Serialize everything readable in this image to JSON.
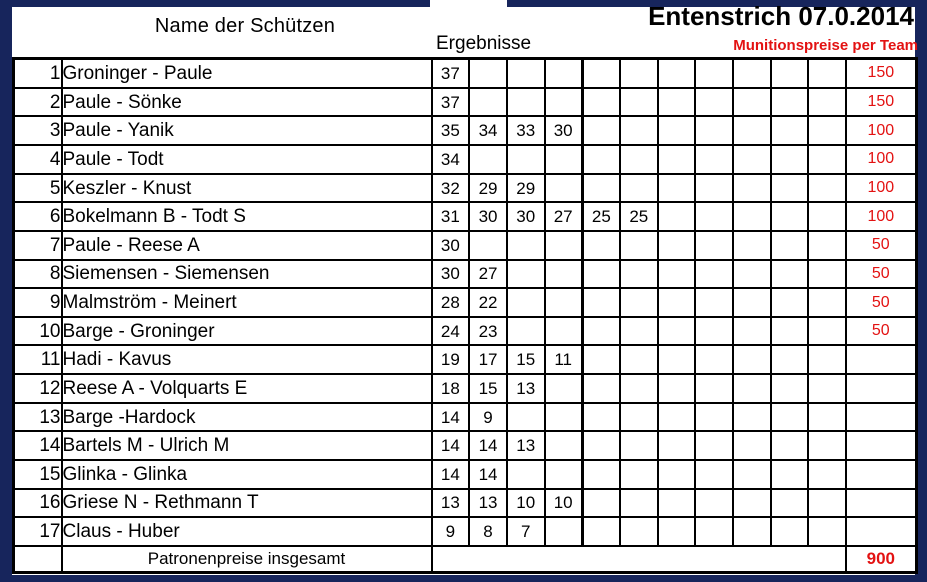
{
  "title": "Entenstrich 07.0.2014",
  "ammo_label": "Munitionspreise per Team",
  "columns": {
    "names": "Name der Schützen",
    "results": "Ergebnisse"
  },
  "footer": {
    "label": "Patronenpreise insgesamt",
    "total": "900"
  },
  "colors": {
    "red": "#e31212",
    "frame": "#17255c",
    "grid": "#000000"
  },
  "table": {
    "score_column_count": 11,
    "rows": [
      {
        "rank": "1",
        "name": "Groninger - Paule",
        "scores": [
          "37"
        ],
        "price": "150"
      },
      {
        "rank": "2",
        "name": "Paule - Sönke",
        "scores": [
          "37"
        ],
        "price": "150"
      },
      {
        "rank": "3",
        "name": "Paule - Yanik",
        "scores": [
          "35",
          "34",
          "33",
          "30"
        ],
        "price": "100"
      },
      {
        "rank": "4",
        "name": "Paule - Todt",
        "scores": [
          "34"
        ],
        "price": "100"
      },
      {
        "rank": "5",
        "name": "Keszler - Knust",
        "scores": [
          "32",
          "29",
          "29"
        ],
        "price": "100"
      },
      {
        "rank": "6",
        "name": "Bokelmann B  - Todt S",
        "scores": [
          "31",
          "30",
          "30",
          "27",
          "25",
          "25"
        ],
        "price": "100"
      },
      {
        "rank": "7",
        "name": "Paule - Reese A",
        "scores": [
          "30"
        ],
        "price": "50"
      },
      {
        "rank": "8",
        "name": "Siemensen - Siemensen",
        "scores": [
          "30",
          "27"
        ],
        "price": "50"
      },
      {
        "rank": "9",
        "name": "Malmström - Meinert",
        "scores": [
          "28",
          "22"
        ],
        "price": "50"
      },
      {
        "rank": "10",
        "name": "Barge - Groninger",
        "scores": [
          "24",
          "23"
        ],
        "price": "50"
      },
      {
        "rank": "11",
        "name": "Hadi - Kavus",
        "scores": [
          "19",
          "17",
          "15",
          "11"
        ],
        "price": ""
      },
      {
        "rank": "12",
        "name": "Reese A - Volquarts E",
        "scores": [
          "18",
          "15",
          "13"
        ],
        "price": ""
      },
      {
        "rank": "13",
        "name": "Barge -Hardock",
        "scores": [
          "14",
          "9"
        ],
        "price": ""
      },
      {
        "rank": "14",
        "name": "Bartels M - Ulrich M",
        "scores": [
          "14",
          "14",
          "13"
        ],
        "price": ""
      },
      {
        "rank": "15",
        "name": "Glinka - Glinka",
        "scores": [
          "14",
          "14"
        ],
        "price": ""
      },
      {
        "rank": "16",
        "name": "Griese N - Rethmann T",
        "scores": [
          "13",
          "13",
          "10",
          "10"
        ],
        "price": ""
      },
      {
        "rank": "17",
        "name": "Claus - Huber",
        "scores": [
          "9",
          "8",
          "7"
        ],
        "price": ""
      }
    ]
  }
}
